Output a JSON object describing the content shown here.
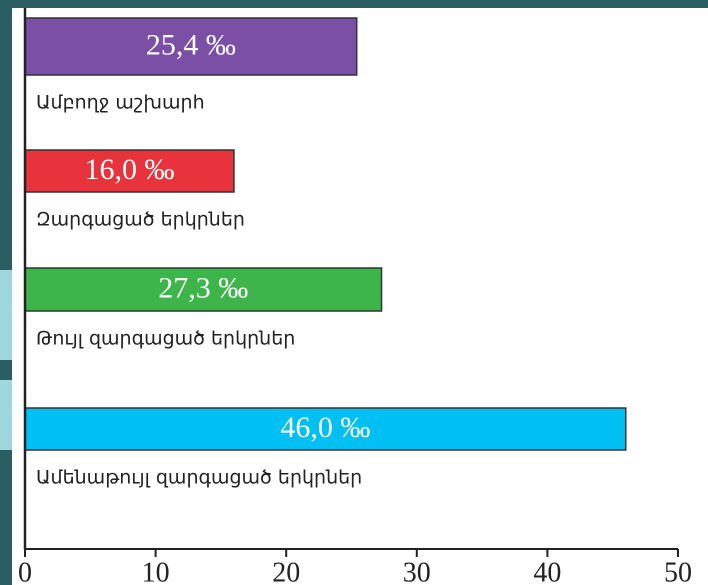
{
  "chart_data": {
    "type": "bar",
    "orientation": "horizontal",
    "categories": [
      "Ամբողջ աշխարհ",
      "Զարգացած  երկրներ",
      "Թույլ զարգացած երկրներ",
      "Ամենաթույլ զարգացած երկրներ"
    ],
    "values": [
      25.4,
      16.0,
      27.3,
      46.0
    ],
    "value_labels": [
      "25,4 ‰",
      "16,0 ‰",
      "27,3 ‰",
      "46,0 ‰"
    ],
    "colors": [
      "#7b4fa6",
      "#e8333d",
      "#3db54a",
      "#00bff3"
    ],
    "xlim": [
      0,
      50
    ],
    "xticks": [
      0,
      10,
      20,
      30,
      40,
      50
    ]
  }
}
